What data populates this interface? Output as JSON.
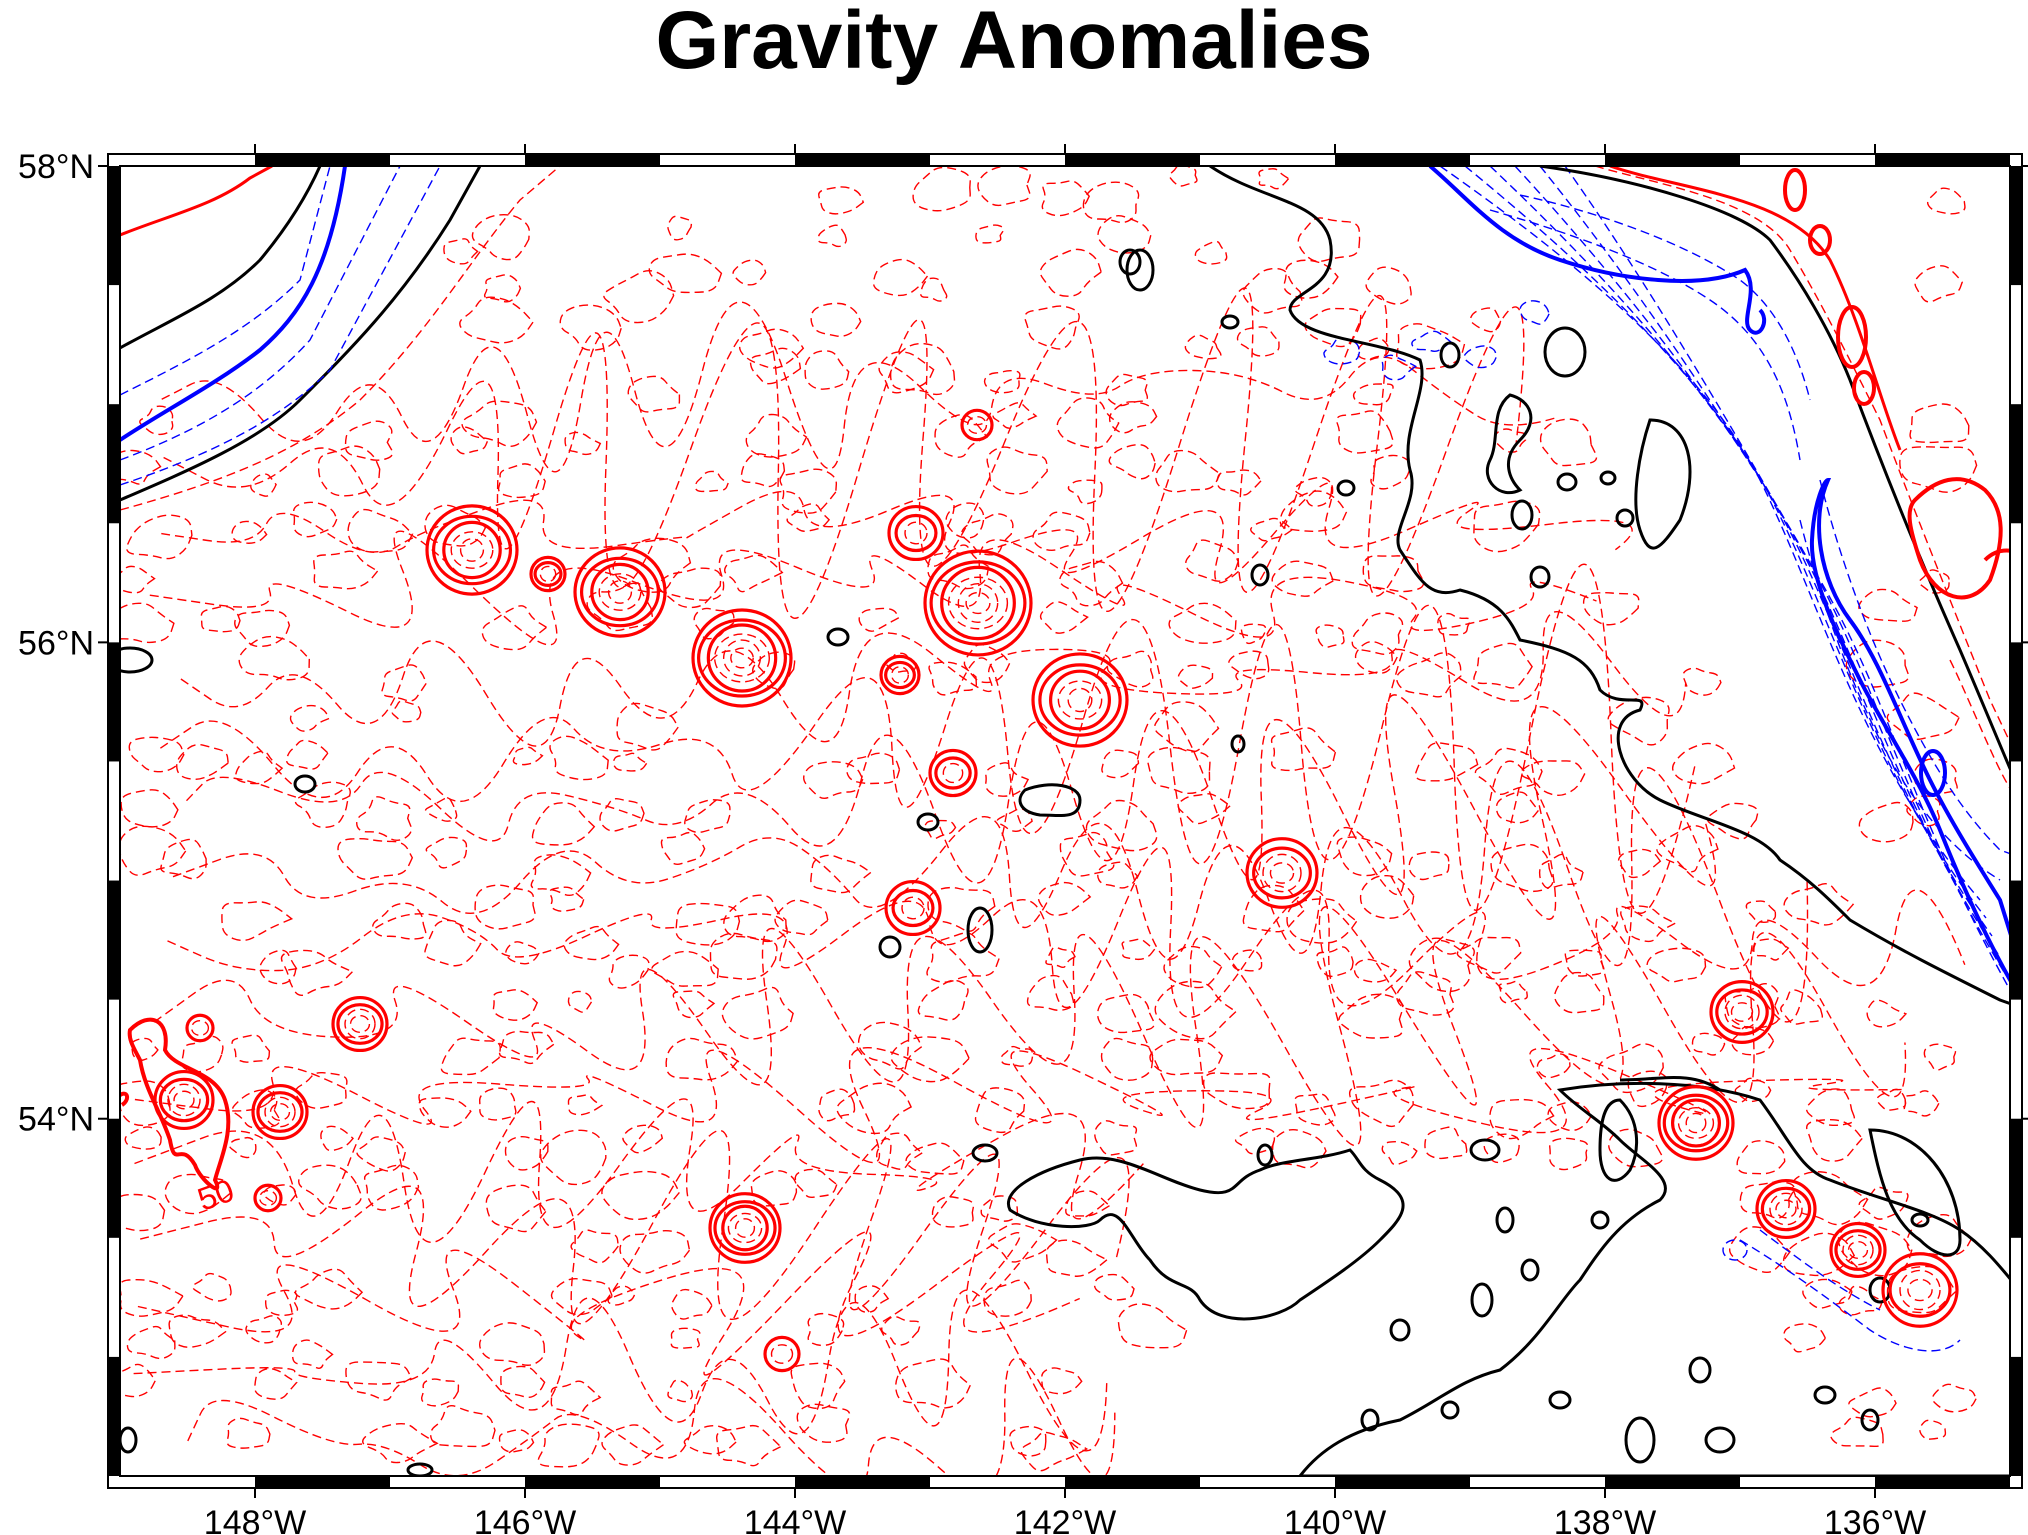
{
  "title": "Gravity Anomalies",
  "map": {
    "lon_range": [
      -149,
      -135
    ],
    "lat_range": [
      52.5,
      58
    ],
    "x_ticks": [
      {
        "lon": -148,
        "label": "148°W"
      },
      {
        "lon": -146,
        "label": "146°W"
      },
      {
        "lon": -144,
        "label": "144°W"
      },
      {
        "lon": -142,
        "label": "142°W"
      },
      {
        "lon": -140,
        "label": "140°W"
      },
      {
        "lon": -138,
        "label": "138°W"
      },
      {
        "lon": -136,
        "label": "136°W"
      }
    ],
    "y_ticks": [
      {
        "lat": 58,
        "label": "58°N"
      },
      {
        "lat": 56,
        "label": "56°N"
      },
      {
        "lat": 54,
        "label": "54°N"
      }
    ],
    "contour_annotation": "50",
    "colors": {
      "positive": "#ff0000",
      "negative": "#0000ff",
      "zero": "#000000",
      "frame": "#000000"
    }
  }
}
